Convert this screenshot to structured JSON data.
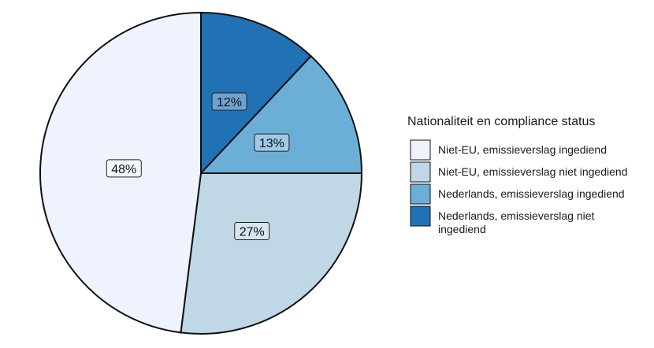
{
  "chart_data": {
    "type": "pie",
    "legend_title": "Nationaliteit en compliance status",
    "legend_position": "right",
    "slices": [
      {
        "name": "Nederlands, emissieverslag niet ingediend",
        "value": 12,
        "label": "12%",
        "color": "#2171b5",
        "legend_lines": [
          "Nederlands, emissieverslag niet",
          "ingediend"
        ]
      },
      {
        "name": "Nederlands, emissieverslag ingediend",
        "value": 13,
        "label": "13%",
        "color": "#6baed6",
        "legend_lines": [
          "Nederlands, emissieverslag ingediend"
        ]
      },
      {
        "name": "Niet-EU, emissieverslag niet ingediend",
        "value": 27,
        "label": "27%",
        "color": "#c0d7e6",
        "legend_lines": [
          "Niet-EU, emissieverslag niet ingediend"
        ]
      },
      {
        "name": "Niet-EU, emissieverslag ingediend",
        "value": 48,
        "label": "48%",
        "color": "#eef3fd",
        "legend_lines": [
          "Niet-EU, emissieverslag ingediend"
        ]
      }
    ],
    "legend_order": [
      "Niet-EU, emissieverslag ingediend",
      "Niet-EU, emissieverslag niet ingediend",
      "Nederlands, emissieverslag ingediend",
      "Nederlands, emissieverslag niet ingediend"
    ]
  }
}
